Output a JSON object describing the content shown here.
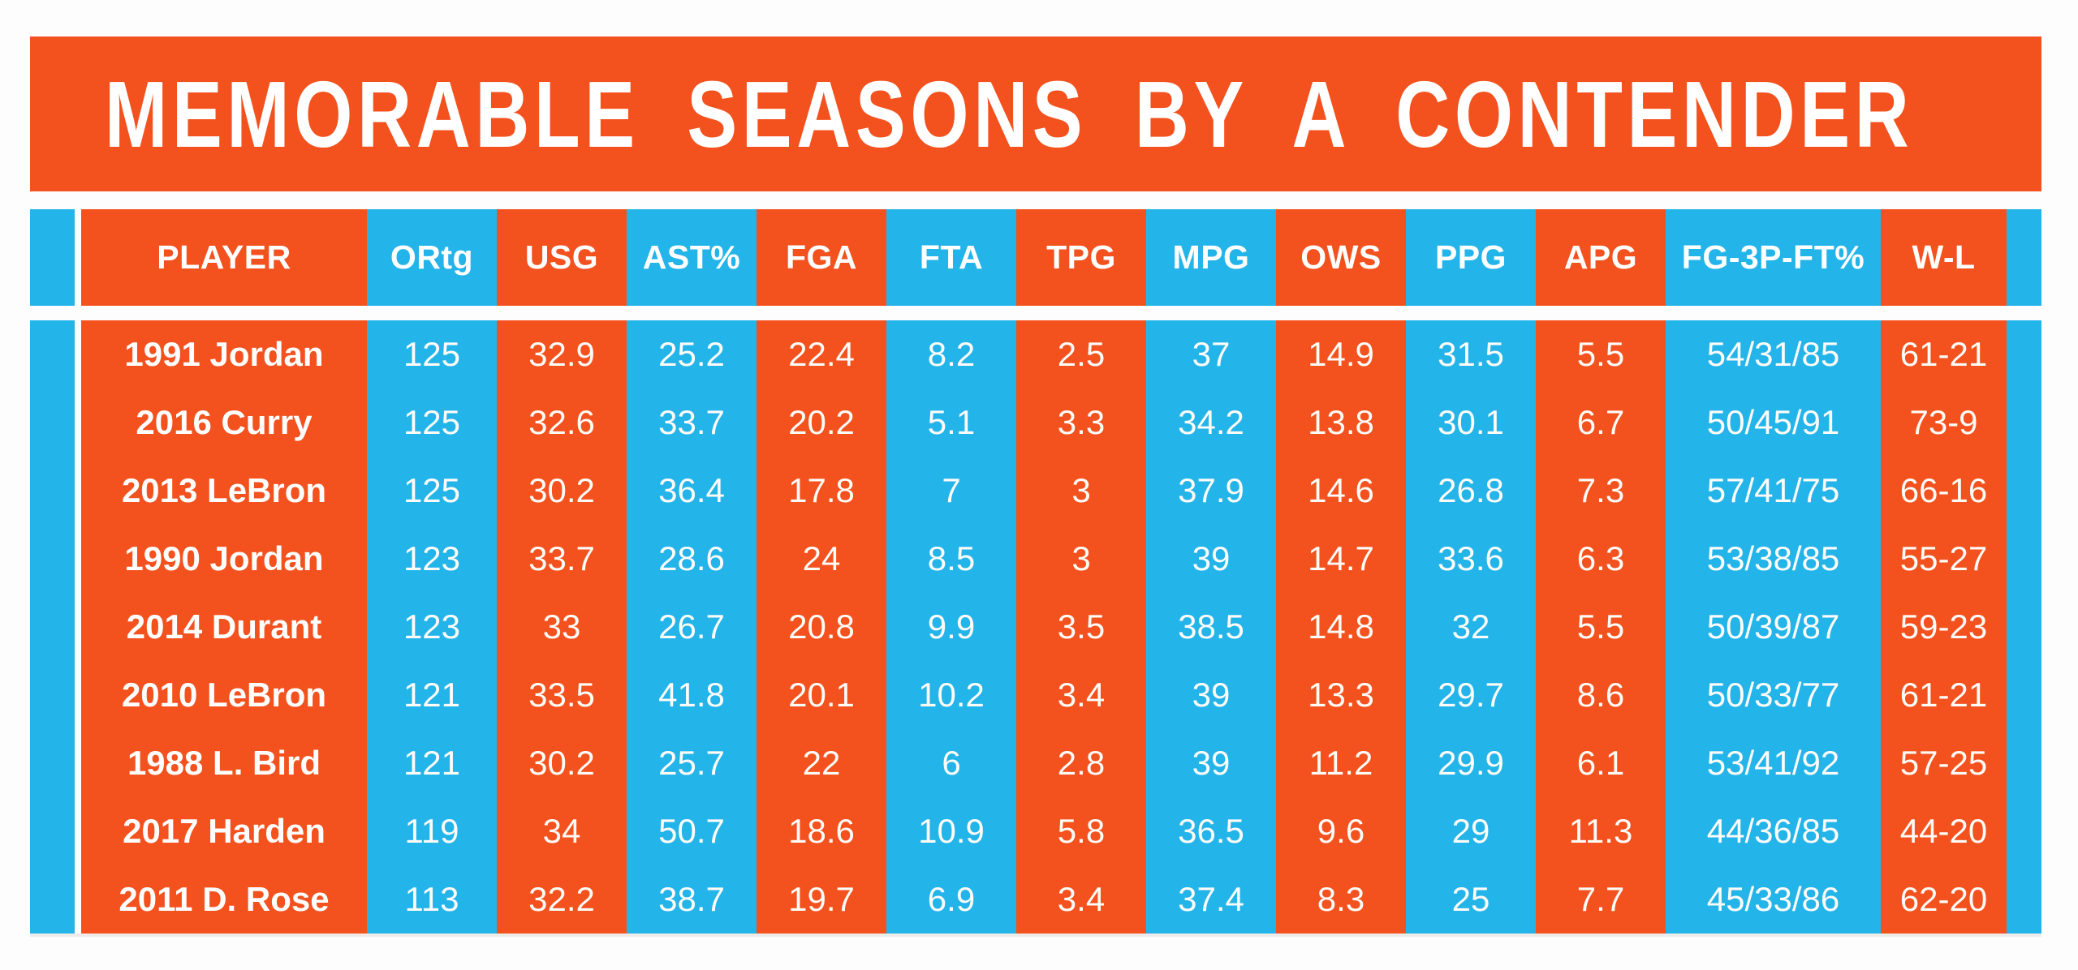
{
  "title": "MEMORABLE SEASONS BY A CONTENDER",
  "colors": {
    "orange": "#F3511E",
    "blue": "#23B4E9",
    "text": "#FFFFFF",
    "background": "#FDFDFD",
    "shadow": "#E6E4E0"
  },
  "chart_data": {
    "type": "table",
    "title": "MEMORABLE SEASONS BY A CONTENDER",
    "columns": [
      "PLAYER",
      "ORtg",
      "USG",
      "AST%",
      "FGA",
      "FTA",
      "TPG",
      "MPG",
      "OWS",
      "PPG",
      "APG",
      "FG-3P-FT%",
      "W-L"
    ],
    "column_colors": [
      "orange",
      "blue",
      "orange",
      "blue",
      "orange",
      "blue",
      "orange",
      "blue",
      "orange",
      "blue",
      "orange",
      "blue",
      "orange"
    ],
    "rows": [
      [
        "1991 Jordan",
        "125",
        "32.9",
        "25.2",
        "22.4",
        "8.2",
        "2.5",
        "37",
        "14.9",
        "31.5",
        "5.5",
        "54/31/85",
        "61-21"
      ],
      [
        "2016 Curry",
        "125",
        "32.6",
        "33.7",
        "20.2",
        "5.1",
        "3.3",
        "34.2",
        "13.8",
        "30.1",
        "6.7",
        "50/45/91",
        "73-9"
      ],
      [
        "2013 LeBron",
        "125",
        "30.2",
        "36.4",
        "17.8",
        "7",
        "3",
        "37.9",
        "14.6",
        "26.8",
        "7.3",
        "57/41/75",
        "66-16"
      ],
      [
        "1990 Jordan",
        "123",
        "33.7",
        "28.6",
        "24",
        "8.5",
        "3",
        "39",
        "14.7",
        "33.6",
        "6.3",
        "53/38/85",
        "55-27"
      ],
      [
        "2014 Durant",
        "123",
        "33",
        "26.7",
        "20.8",
        "9.9",
        "3.5",
        "38.5",
        "14.8",
        "32",
        "5.5",
        "50/39/87",
        "59-23"
      ],
      [
        "2010 LeBron",
        "121",
        "33.5",
        "41.8",
        "20.1",
        "10.2",
        "3.4",
        "39",
        "13.3",
        "29.7",
        "8.6",
        "50/33/77",
        "61-21"
      ],
      [
        "1988 L. Bird",
        "121",
        "30.2",
        "25.7",
        "22",
        "6",
        "2.8",
        "39",
        "11.2",
        "29.9",
        "6.1",
        "53/41/92",
        "57-25"
      ],
      [
        "2017 Harden",
        "119",
        "34",
        "50.7",
        "18.6",
        "10.9",
        "5.8",
        "36.5",
        "9.6",
        "29",
        "11.3",
        "44/36/85",
        "44-20"
      ],
      [
        "2011 D. Rose",
        "113",
        "32.2",
        "38.7",
        "19.7",
        "6.9",
        "3.4",
        "37.4",
        "8.3",
        "25",
        "7.7",
        "45/33/86",
        "62-20"
      ]
    ],
    "legend": "none",
    "grid": "off"
  }
}
